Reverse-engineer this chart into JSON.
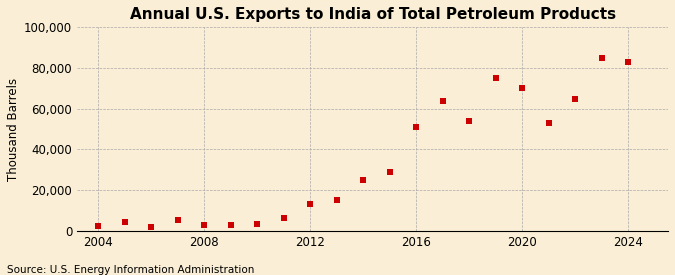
{
  "title": "Annual U.S. Exports to India of Total Petroleum Products",
  "ylabel": "Thousand Barrels",
  "source": "Source: U.S. Energy Information Administration",
  "background_color": "#faefd6",
  "marker_color": "#cc0000",
  "years": [
    2004,
    2005,
    2006,
    2007,
    2008,
    2009,
    2010,
    2011,
    2012,
    2013,
    2014,
    2015,
    2016,
    2017,
    2018,
    2019,
    2020,
    2021,
    2022,
    2023,
    2024
  ],
  "values": [
    2500,
    4500,
    2000,
    5500,
    2800,
    2800,
    3200,
    6500,
    13000,
    15000,
    25000,
    29000,
    51000,
    64000,
    54000,
    75000,
    70000,
    53000,
    65000,
    85000,
    83000
  ],
  "xlim": [
    2003.2,
    2025.5
  ],
  "ylim": [
    0,
    100000
  ],
  "yticks": [
    0,
    20000,
    40000,
    60000,
    80000,
    100000
  ],
  "xticks": [
    2004,
    2008,
    2012,
    2016,
    2020,
    2024
  ],
  "grid_color": "#aaaaaa",
  "title_fontsize": 11,
  "label_fontsize": 8.5,
  "source_fontsize": 7.5
}
